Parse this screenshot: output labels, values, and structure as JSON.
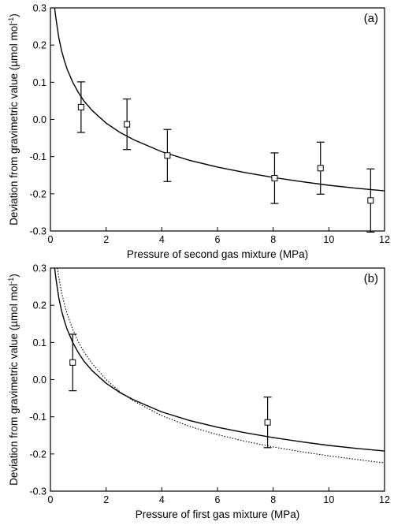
{
  "chart_data": [
    {
      "type": "scatter",
      "panel_label": "(a)",
      "xlabel": "Pressure of second gas mixture (MPa)",
      "ylabel_main": "Deviation from gravimetric value  (",
      "ylabel_unit": "µmol mol",
      "ylabel_sup": "-1",
      "ylabel_close": ")",
      "xlim": [
        0,
        12
      ],
      "ylim": [
        -0.3,
        0.3
      ],
      "xticks": [
        0,
        2,
        4,
        6,
        8,
        10,
        12
      ],
      "xtick_labels": [
        "0",
        "2",
        "4",
        "6",
        "8",
        "10",
        "12"
      ],
      "yticks": [
        -0.3,
        -0.2,
        -0.1,
        0.0,
        0.1,
        0.2,
        0.3
      ],
      "ytick_labels": [
        "-0.3",
        "-0.2",
        "-0.1",
        "0.0",
        "0.1",
        "0.2",
        "0.3"
      ],
      "points": [
        {
          "x": 1.1,
          "y": 0.033,
          "err": 0.068
        },
        {
          "x": 2.75,
          "y": -0.013,
          "err": 0.068
        },
        {
          "x": 4.2,
          "y": -0.097,
          "err": 0.07
        },
        {
          "x": 8.05,
          "y": -0.158,
          "err": 0.068
        },
        {
          "x": 9.7,
          "y": -0.131,
          "err": 0.07
        },
        {
          "x": 11.5,
          "y": -0.218,
          "err": 0.085
        }
      ],
      "curves": [
        {
          "style": "solid",
          "x": [
            0.15,
            0.2,
            0.3,
            0.4,
            0.5,
            0.6,
            0.8,
            1.0,
            1.2,
            1.5,
            2.0,
            2.5,
            3.0,
            4.0,
            5.0,
            6.0,
            7.0,
            8.0,
            9.0,
            10.0,
            11.0,
            12.0
          ],
          "y": [
            0.3,
            0.27,
            0.22,
            0.185,
            0.158,
            0.135,
            0.1,
            0.073,
            0.05,
            0.024,
            -0.01,
            -0.035,
            -0.055,
            -0.087,
            -0.11,
            -0.128,
            -0.143,
            -0.156,
            -0.167,
            -0.177,
            -0.185,
            -0.192
          ]
        }
      ]
    },
    {
      "type": "scatter",
      "panel_label": "(b)",
      "xlabel": "Pressure of first gas mixture (MPa)",
      "ylabel_main": "Deviation from gravimetric value  (",
      "ylabel_unit": "µmol mol",
      "ylabel_sup": "-1",
      "ylabel_close": ")",
      "xlim": [
        0,
        12
      ],
      "ylim": [
        -0.3,
        0.3
      ],
      "xticks": [
        0,
        2,
        4,
        6,
        8,
        10,
        12
      ],
      "xtick_labels": [
        "0",
        "2",
        "4",
        "6",
        "8",
        "10",
        "12"
      ],
      "yticks": [
        -0.3,
        -0.2,
        -0.1,
        0.0,
        0.1,
        0.2,
        0.3
      ],
      "ytick_labels": [
        "-0.3",
        "-0.2",
        "-0.1",
        "0.0",
        "0.1",
        "0.2",
        "0.3"
      ],
      "points": [
        {
          "x": 0.8,
          "y": 0.046,
          "err": 0.076
        },
        {
          "x": 7.8,
          "y": -0.115,
          "err": 0.068
        }
      ],
      "curves": [
        {
          "style": "solid",
          "x": [
            0.15,
            0.2,
            0.3,
            0.4,
            0.5,
            0.6,
            0.8,
            1.0,
            1.2,
            1.5,
            2.0,
            2.5,
            3.0,
            4.0,
            5.0,
            6.0,
            7.0,
            8.0,
            9.0,
            10.0,
            11.0,
            12.0
          ],
          "y": [
            0.3,
            0.27,
            0.22,
            0.185,
            0.158,
            0.135,
            0.1,
            0.073,
            0.05,
            0.024,
            -0.01,
            -0.035,
            -0.055,
            -0.087,
            -0.11,
            -0.128,
            -0.143,
            -0.156,
            -0.167,
            -0.177,
            -0.185,
            -0.192
          ]
        },
        {
          "style": "dotted",
          "x": [
            0.25,
            0.3,
            0.4,
            0.5,
            0.6,
            0.8,
            1.0,
            1.2,
            1.5,
            2.0,
            2.5,
            3.0,
            4.0,
            5.0,
            6.0,
            7.0,
            8.0,
            9.0,
            10.0,
            11.0,
            12.0
          ],
          "y": [
            0.3,
            0.275,
            0.235,
            0.203,
            0.177,
            0.135,
            0.102,
            0.075,
            0.043,
            0.0,
            -0.033,
            -0.058,
            -0.097,
            -0.126,
            -0.148,
            -0.166,
            -0.181,
            -0.194,
            -0.205,
            -0.215,
            -0.224
          ]
        }
      ]
    }
  ]
}
